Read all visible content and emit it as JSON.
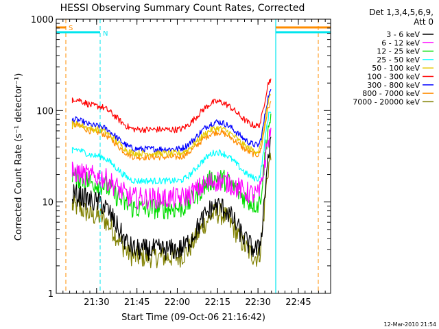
{
  "chart_data": {
    "type": "line",
    "title": "HESSI Observing Summary Count Rates, Corrected",
    "xlabel": "Start Time (09-Oct-06 21:16:42)",
    "ylabel": "Corrected Count Rate (s⁻¹ detector⁻¹)",
    "y_scale": "log",
    "ylim": [
      1,
      1000
    ],
    "xlim_minutes": [
      21.25,
      22.95
    ],
    "x_ticks": [
      "21:30",
      "21:45",
      "22:00",
      "22:15",
      "22:30",
      "22:45"
    ],
    "x_tick_hours": [
      21.5,
      21.75,
      22.0,
      22.25,
      22.5,
      22.75
    ],
    "y_ticks": [
      "1",
      "10",
      "100",
      "1000"
    ],
    "y_tick_values": [
      1,
      10,
      100,
      1000
    ],
    "legend_header": [
      "Det 1,3,4,5,6,9,",
      "Att 0"
    ],
    "legend_placement": "right",
    "markers": [
      {
        "label": "S",
        "color": "#ff8c00"
      },
      {
        "label": "N",
        "color": "#00e5ee"
      }
    ],
    "series": [
      {
        "name": "3 - 6 keV",
        "color": "#000000",
        "x": [
          21.35,
          21.5,
          21.75,
          22.0,
          22.25,
          22.5,
          22.58
        ],
        "values": [
          12,
          10,
          3,
          3,
          9,
          3,
          40
        ]
      },
      {
        "name": "6 - 12 keV",
        "color": "#ff00ff",
        "x": [
          21.35,
          21.5,
          21.75,
          22.0,
          22.25,
          22.5,
          22.58
        ],
        "values": [
          21,
          19,
          11,
          11,
          17,
          12,
          55
        ]
      },
      {
        "name": "12 - 25 keV",
        "color": "#00dd00",
        "x": [
          21.35,
          21.5,
          21.75,
          22.0,
          22.25,
          22.5,
          22.58
        ],
        "values": [
          19,
          16,
          8.5,
          8.5,
          18,
          9.5,
          80
        ]
      },
      {
        "name": "25 - 50 keV",
        "color": "#00ffff",
        "x": [
          21.35,
          21.5,
          21.75,
          22.0,
          22.25,
          22.5,
          22.58
        ],
        "values": [
          38,
          32,
          17,
          17,
          35,
          18,
          100
        ]
      },
      {
        "name": "50 - 100 keV",
        "color": "#e6c800",
        "x": [
          21.35,
          21.5,
          21.75,
          22.0,
          22.25,
          22.5,
          22.58
        ],
        "values": [
          72,
          62,
          34,
          34,
          64,
          36,
          140
        ]
      },
      {
        "name": "100 - 300 keV",
        "color": "#ff0000",
        "x": [
          21.35,
          21.5,
          21.75,
          22.0,
          22.25,
          22.5,
          22.58
        ],
        "values": [
          135,
          112,
          62,
          62,
          125,
          68,
          220
        ]
      },
      {
        "name": "300 - 800 keV",
        "color": "#0000ff",
        "x": [
          21.35,
          21.5,
          21.75,
          22.0,
          22.25,
          22.5,
          22.58
        ],
        "values": [
          80,
          68,
          38,
          38,
          75,
          42,
          160
        ]
      },
      {
        "name": "800 - 7000 keV",
        "color": "#ff8c00",
        "x": [
          21.35,
          21.5,
          21.75,
          22.0,
          22.25,
          22.5,
          22.58
        ],
        "values": [
          70,
          58,
          31,
          31,
          58,
          33,
          120
        ]
      },
      {
        "name": "7000 - 20000 keV",
        "color": "#808000",
        "x": [
          21.35,
          21.5,
          21.75,
          22.0,
          22.25,
          22.5,
          22.58
        ],
        "values": [
          9,
          7,
          2.5,
          2.5,
          7.5,
          2.5,
          30
        ]
      }
    ]
  },
  "footer": {
    "timestamp": "12-Mar-2010 21:54"
  }
}
